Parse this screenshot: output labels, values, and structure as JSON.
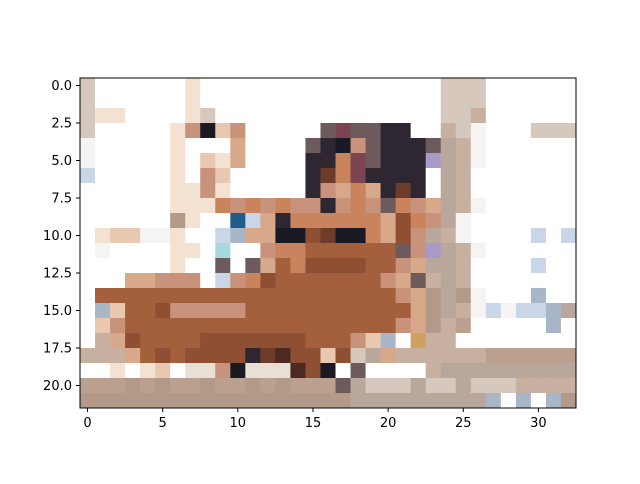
{
  "chart_data": {
    "type": "heatmap",
    "title": "",
    "xlabel": "",
    "ylabel": "",
    "grid": false,
    "legend": "none",
    "xlim": [
      -0.5,
      32.5
    ],
    "ylim": [
      21.5,
      -0.5
    ],
    "n_cols": 33,
    "n_rows": 22,
    "x_ticks": [
      0,
      5,
      10,
      15,
      20,
      25,
      30
    ],
    "x_tick_labels": [
      "0",
      "5",
      "10",
      "15",
      "20",
      "25",
      "30"
    ],
    "y_ticks": [
      0.0,
      2.5,
      5.0,
      7.5,
      10.0,
      12.5,
      15.0,
      17.5,
      20.0
    ],
    "y_tick_labels": [
      "0.0",
      "2.5",
      "5.0",
      "7.5",
      "10.0",
      "12.5",
      "15.0",
      "17.5",
      "20.0"
    ],
    "palette": {
      "W": "#ffffff",
      "w": "#f6f4f2",
      "c": "#f3e2d2",
      "s": "#e9c8b0",
      "p": "#d7a88a",
      "q": "#c8937a",
      "o": "#c9845e",
      "O": "#b8714e",
      "b": "#a45f3d",
      "B": "#8e4f33",
      "d": "#6e3c2a",
      "D": "#4a2a22",
      "k": "#2e2630",
      "K": "#1a1a24",
      "g": "#d7c8bd",
      "G": "#b8a79a",
      "t": "#c8b0a0",
      "T": "#b39a88",
      "m": "#6d5a5c",
      "M": "#7b4451",
      "v": "#a89bc9",
      "l": "#c9d6e8",
      "L": "#a9b6c8",
      "n": "#1f5e8a",
      "a": "#a8d8df",
      "y": "#cfa060",
      "e": "#e8e0d4",
      "u": "#bba090"
    },
    "rows": [
      "gWWWWWWcWWWWWWWWWWWWWWWWgggWWWWWW",
      "gWWWWWWcWWWWWWWWWWWWWWWWgggWWWWWW",
      "gccWWWWcgWWWWWWWWWWWWWWWggtWWWWWW",
      "gWWWWWcqKsqWWWWWmMmmkkWWtgwWWWggg",
      "wWWWWWcWWWpWWWWmkKqmkkkmGtwWWWWWW",
      "wWWWWWcWscpWWWWkkoMmkkkvGtwWWWWWW",
      "lWWWWWcWqsWWWWWkdoMkkkkWGtWWWWWWW",
      "WWWWWWccqcWWWWWkqpopkdkWGtWWWWWWW",
      "WWWWWWcccoqoqoqqkqoqmoqpGtwWWWWWW",
      "WWWWWWTcWWnlpkoooooopBoqGwWWWWWWW",
      "WcsswwcWWlLppKKBdKKopBqGtwWWWWlWl",
      "WwWWWWccWaWWqoobbbbbbmqvGtwWWWWWW",
      "WWWWWWcWWmWmpboBBBBbbqpGGtWWWWlWW",
      "WWWppqqqWlqoBbbbbbbbqpmtGtWWWWWWW",
      "WbbbbbbbbbbbbbbbbbbbbqpTGTwWWWLWW",
      "WLsbbBqqqqqbbbbbbbbbbbpTGtwlwllLG",
      "WsqbbbbbbbbbbbbbbbbbbqpTtuWWWWWLW",
      "WtpBbbbbBBBBBBBbbbqsLWyttWWWWWWWW",
      "tttpbBbBBBBkdDBBsBgGpttttttuuuuuu",
      "WWcWcsWeeqKeeeDBKWmWWWWtGGGGGGGGG",
      "uuuTuTuuTuuTuTuuumGgggGggGgggtttt",
      "TTTTTTTTTTTTTTTTTTGGGGGGGGGLWLWLT"
    ]
  }
}
